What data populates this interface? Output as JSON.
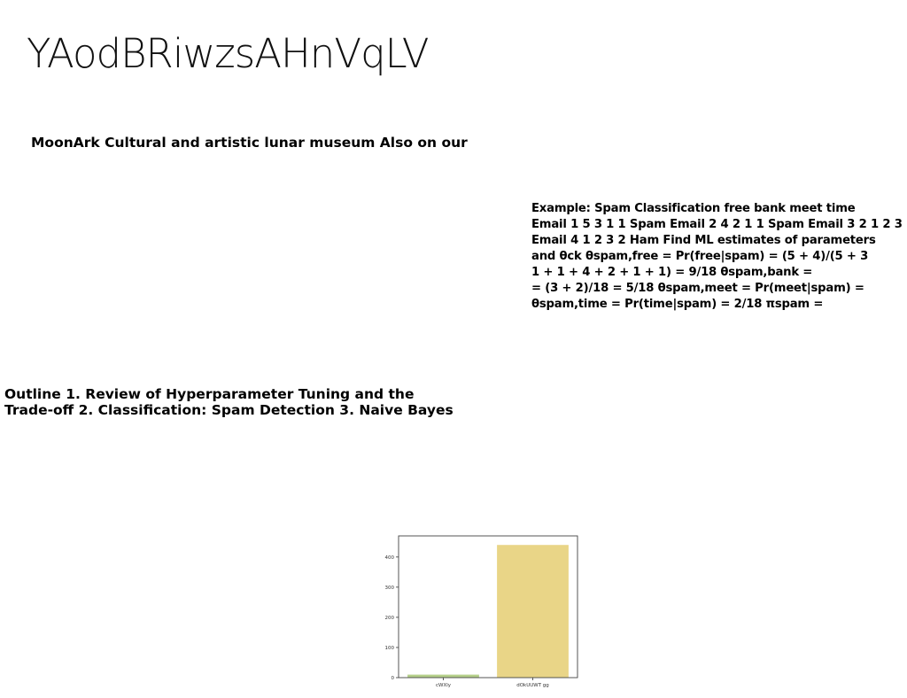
{
  "page": {
    "title": "YAodBRiwzsAHnVqLV",
    "subtitle": "MoonArk Cultural and artistic lunar museum Also on our"
  },
  "example": {
    "lines": [
      "Example: Spam Classification free bank meet time",
      "Email 1 5 3 1 1 Spam Email 2 4 2 1 1 Spam Email 3 2 1 2 3",
      "Email 4 1 2 3 2 Ham Find ML estimates of parameters",
      "and θck θspam,free = Pr(free|spam) = (5 + 4)/(5 + 3",
      "1 + 1 + 4 + 2 + 1 + 1) = 9/18 θspam,bank =",
      "= (3 + 2)/18 = 5/18 θspam,meet = Pr(meet|spam) =",
      "θspam,time = Pr(time|spam) = 2/18 πspam ="
    ]
  },
  "outline": {
    "lines": [
      "Outline 1. Review of Hyperparameter Tuning and the",
      "Trade-off 2. Classification: Spam Detection 3. Naive Bayes"
    ]
  },
  "chart_data": {
    "type": "bar",
    "categories": [
      "cWXly",
      "dOkUUWT gg"
    ],
    "values": [
      10,
      440
    ],
    "colors": [
      "#b5d08a",
      "#e9d587"
    ],
    "ylim": [
      0,
      470
    ],
    "yticks": [
      0,
      100,
      200,
      300,
      400
    ],
    "grid": false
  }
}
